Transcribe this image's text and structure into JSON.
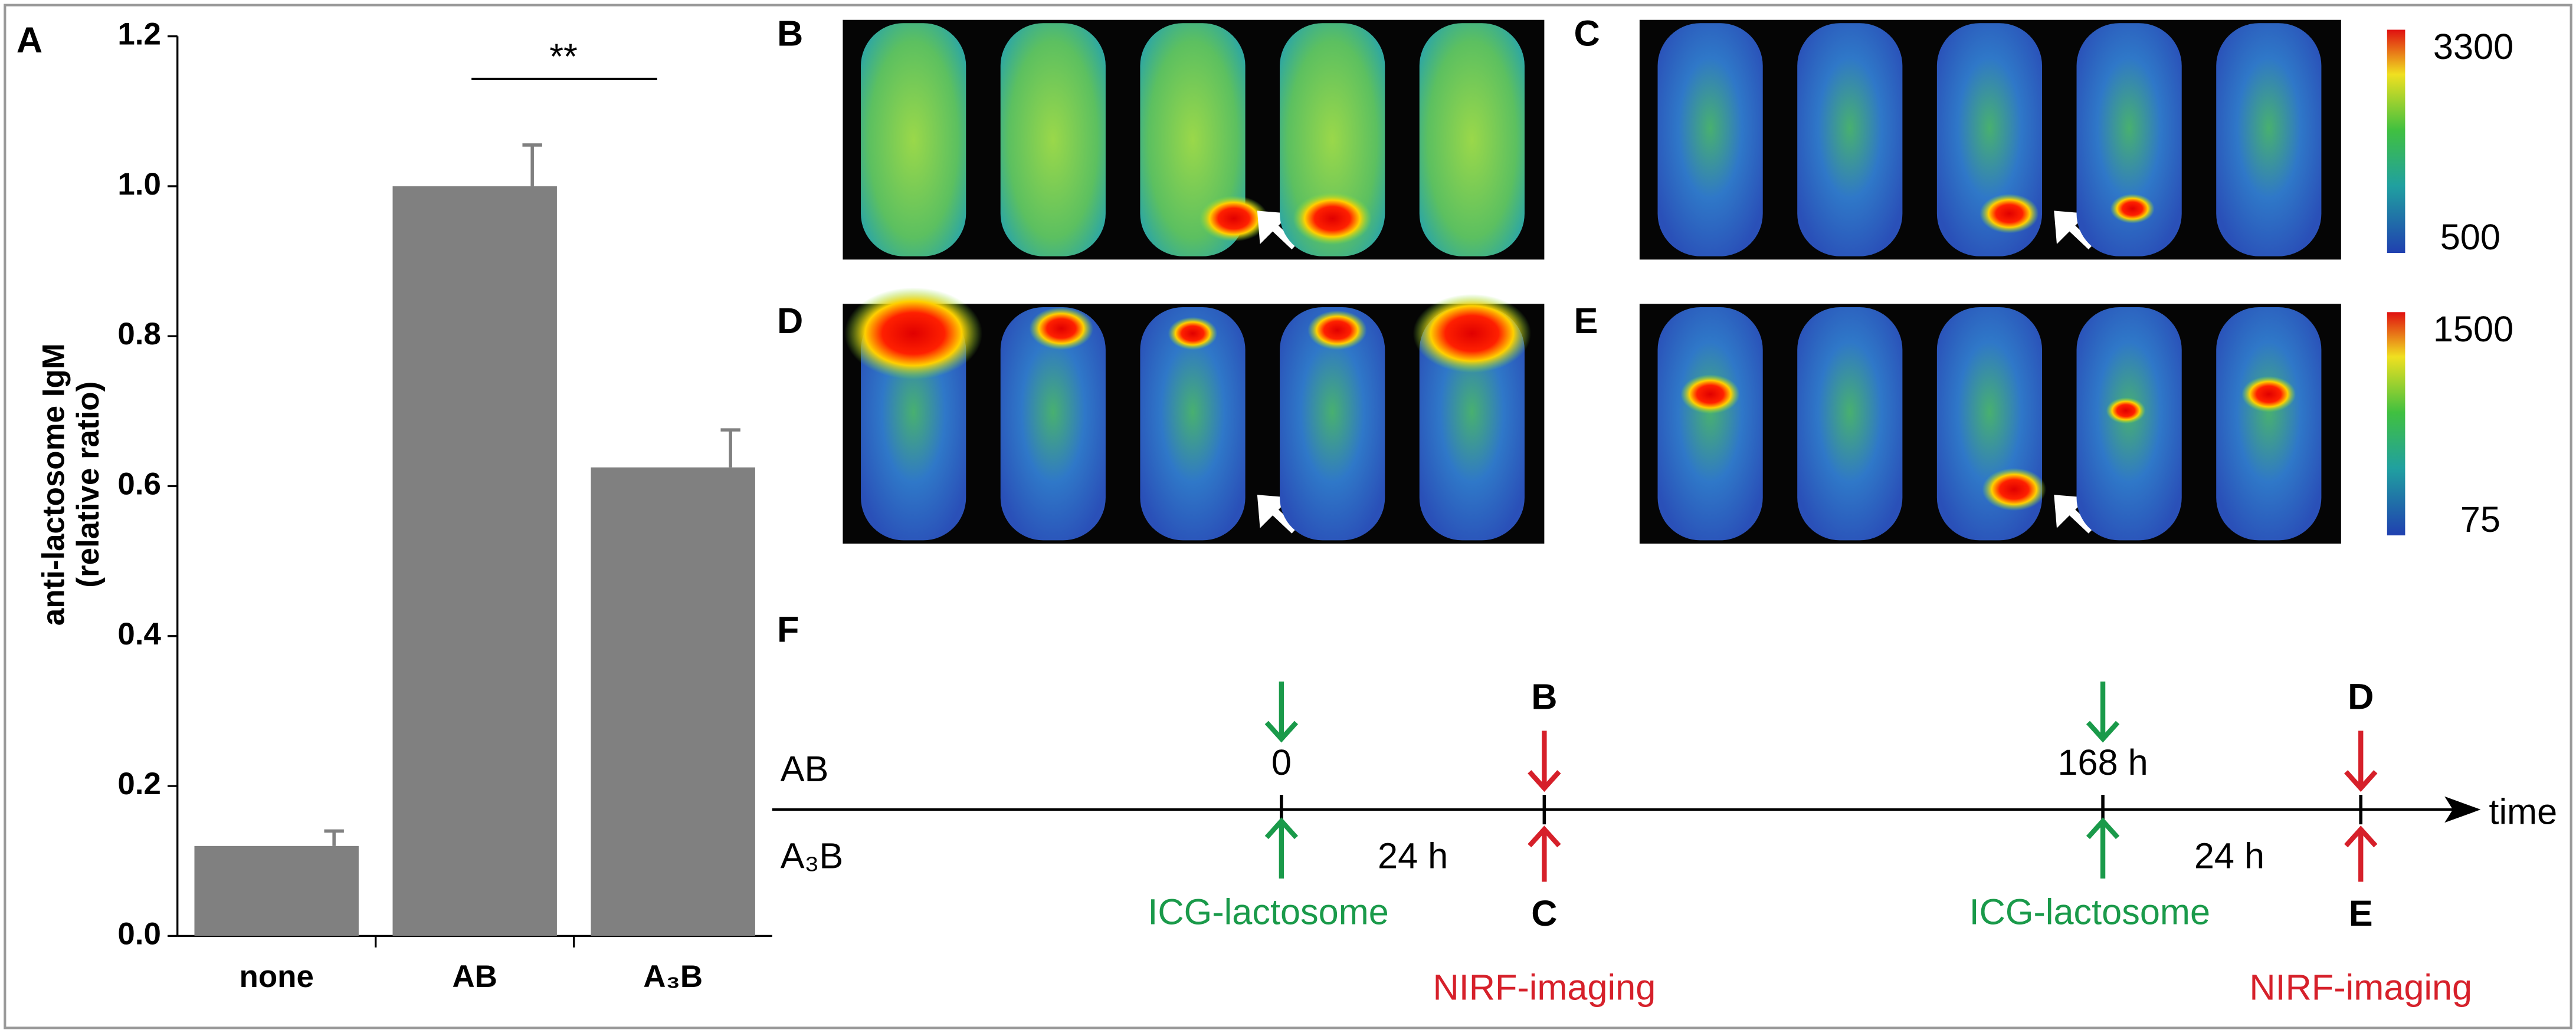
{
  "chart_data": {
    "type": "bar",
    "panel_label": "A",
    "y_label": [
      "anti-lactosome IgM",
      "(relative ratio)"
    ],
    "categories": [
      "none",
      "AB",
      "A₃B"
    ],
    "values": [
      0.12,
      1.0,
      0.625
    ],
    "errors": [
      0.02,
      0.055,
      0.05
    ],
    "color": "#808080",
    "ylim": [
      0,
      1.2
    ],
    "yticks": [
      {
        "value": 0,
        "label": "0.0"
      },
      {
        "value": 0.2,
        "label": "0.2"
      },
      {
        "value": 0.4,
        "label": "0.4"
      },
      {
        "value": 0.6,
        "label": "0.6"
      },
      {
        "value": 0.8,
        "label": "0.8"
      },
      {
        "value": 1.0,
        "label": "1.0"
      },
      {
        "value": 1.2,
        "label": "1.2"
      }
    ],
    "significance": "**"
  },
  "panels": [
    {
      "label": "B"
    },
    {
      "label": "C"
    },
    {
      "label": "D"
    },
    {
      "label": "E"
    }
  ],
  "colorbars": [
    {
      "max": 3300,
      "min": 500
    },
    {
      "max": 1500,
      "min": 75
    }
  ],
  "timeline": {
    "label": "F",
    "rows": [
      "AB",
      "A₃B"
    ],
    "axis_label": "time",
    "injections": [
      {
        "time_label": "0",
        "agent": "ICG-lactosome"
      },
      {
        "time_label": "168 h",
        "agent": "ICG-lactosome"
      }
    ],
    "imaging": [
      {
        "top": "B",
        "bottom": "C",
        "interval": "24 h",
        "method": "NIRF-imaging"
      },
      {
        "top": "D",
        "bottom": "E",
        "interval": "24 h",
        "method": "NIRF-imaging"
      }
    ]
  }
}
